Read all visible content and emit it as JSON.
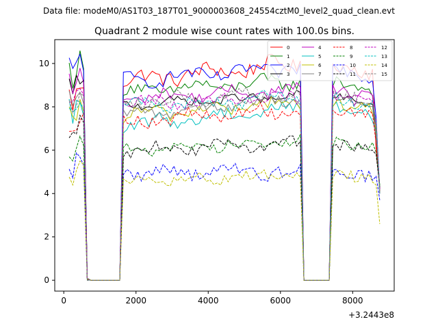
{
  "figure": {
    "suptitle": "Data file: modeM0/AS1T03_187T01_9000003608_24554cztM0_level2_quad_clean.evt"
  },
  "chart_data": {
    "type": "line",
    "title": "Quadrant 2 module wise count rates with 100.0s bins.",
    "xlabel": "",
    "ylabel": "",
    "x_offset_label": "+3.2443e8",
    "xlim": [
      -250,
      9150
    ],
    "ylim": [
      -0.5,
      11.1
    ],
    "xticks": [
      0,
      2000,
      4000,
      6000,
      8000
    ],
    "yticks": [
      0,
      2,
      4,
      6,
      8,
      10
    ],
    "grid": false,
    "legend_placement": "top-right",
    "segments": [
      {
        "x_start": 150,
        "x_end": 550
      },
      {
        "x_start": 1650,
        "x_end": 6550
      },
      {
        "x_start": 7450,
        "x_end": 8650
      }
    ],
    "gap_points": [
      650,
      750,
      1450,
      1550,
      6650,
      6750,
      7250,
      7350
    ],
    "drop_point": {
      "x": 8750
    },
    "series": [
      {
        "name": "0",
        "color": "#ff0000",
        "dash": "solid",
        "level": 9.2,
        "amp": 0.35,
        "ramp": 0.8,
        "start": 8.6,
        "end": 6.0,
        "drop": 4.2
      },
      {
        "name": "1",
        "color": "#008000",
        "dash": "solid",
        "level": 8.7,
        "amp": 0.3,
        "ramp": 0.5,
        "start": 9.8,
        "end": 6.8,
        "drop": 4.3
      },
      {
        "name": "2",
        "color": "#0000ff",
        "dash": "solid",
        "level": 9.2,
        "amp": 0.3,
        "ramp": 0.6,
        "start": 10.0,
        "end": 7.5,
        "drop": 4.1
      },
      {
        "name": "3",
        "color": "#000000",
        "dash": "solid",
        "level": 8.1,
        "amp": 0.2,
        "ramp": 0.4,
        "start": 9.0,
        "end": 6.5,
        "drop": 4.2
      },
      {
        "name": "4",
        "color": "#bf00bf",
        "dash": "solid",
        "level": 8.4,
        "amp": 0.25,
        "ramp": 0.4,
        "start": 9.2,
        "end": 7.0,
        "drop": 4.0
      },
      {
        "name": "5",
        "color": "#00bfbf",
        "dash": "solid",
        "level": 7.1,
        "amp": 0.3,
        "ramp": 0.9,
        "start": 8.0,
        "end": 6.8,
        "drop": 4.0
      },
      {
        "name": "6",
        "color": "#bfbf00",
        "dash": "solid",
        "level": 7.6,
        "amp": 0.3,
        "ramp": 0.6,
        "start": 7.6,
        "end": 7.0,
        "drop": 4.1
      },
      {
        "name": "7",
        "color": "#808080",
        "dash": "solid",
        "level": 7.6,
        "amp": 0.25,
        "ramp": 0.8,
        "start": 8.3,
        "end": 6.6,
        "drop": 4.0
      },
      {
        "name": "8",
        "color": "#ff0000",
        "dash": "dashed",
        "level": 7.3,
        "amp": 0.3,
        "ramp": 0.6,
        "start": 7.3,
        "end": 6.3,
        "drop": 4.1
      },
      {
        "name": "9",
        "color": "#008000",
        "dash": "dashed",
        "level": 6.0,
        "amp": 0.25,
        "ramp": 0.4,
        "start": 6.1,
        "end": 5.9,
        "drop": 4.4
      },
      {
        "name": "10",
        "color": "#0000ff",
        "dash": "dashed",
        "level": 5.0,
        "amp": 0.3,
        "ramp": 0.0,
        "start": 5.5,
        "end": 4.8,
        "drop": 3.7
      },
      {
        "name": "11",
        "color": "#000000",
        "dash": "dashed",
        "level": 6.0,
        "amp": 0.25,
        "ramp": 0.3,
        "start": 6.9,
        "end": 5.8,
        "drop": 4.3
      },
      {
        "name": "12",
        "color": "#bf00bf",
        "dash": "dashed",
        "level": 8.1,
        "amp": 0.3,
        "ramp": 0.4,
        "start": 8.5,
        "end": 7.4,
        "drop": 4.2
      },
      {
        "name": "13",
        "color": "#00bfbf",
        "dash": "dashed",
        "level": 8.0,
        "amp": 0.3,
        "ramp": 0.4,
        "start": 8.2,
        "end": 7.3,
        "drop": 4.0
      },
      {
        "name": "14",
        "color": "#bfbf00",
        "dash": "dashed",
        "level": 4.5,
        "amp": 0.25,
        "ramp": 0.4,
        "start": 5.0,
        "end": 4.4,
        "drop": 2.6
      },
      {
        "name": "15",
        "color": "#808080",
        "dash": "dashed",
        "level": 8.2,
        "amp": 0.3,
        "ramp": 0.4,
        "start": 8.5,
        "end": 7.2,
        "drop": 4.0
      }
    ]
  }
}
